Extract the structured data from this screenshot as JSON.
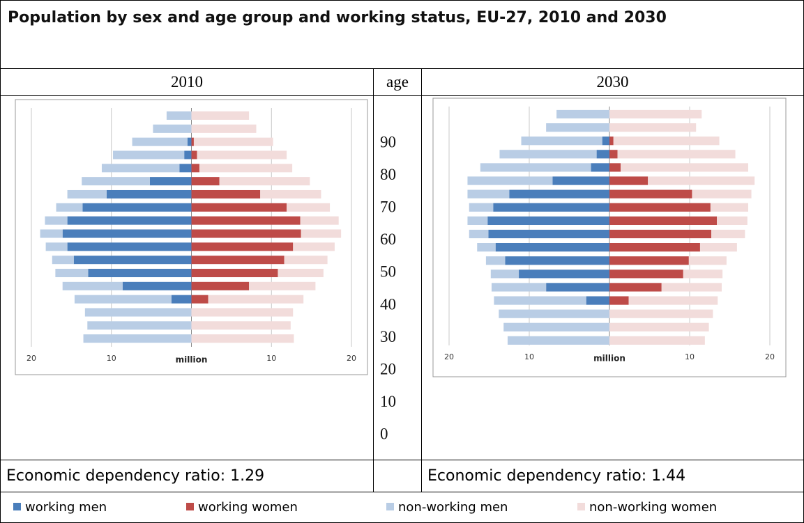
{
  "title": "Population by sex and age group and working status, EU-27, 2010 and 2030",
  "columns": [
    "2010",
    "age",
    "2030"
  ],
  "age_labels": [
    "90",
    "80",
    "70",
    "60",
    "50",
    "40",
    "30",
    "20",
    "10",
    "0"
  ],
  "ratios": [
    "Economic dependency ratio: 1.29",
    "Economic dependency ratio: 1.44"
  ],
  "chart_data": [
    {
      "type": "pyramid",
      "x_label": "million",
      "xlim": [
        -22,
        22
      ],
      "xticks": [
        {
          "value": -20,
          "label": "20"
        },
        {
          "value": -10,
          "label": "10"
        },
        {
          "value": 10,
          "label": "10"
        },
        {
          "value": 20,
          "label": "20"
        }
      ],
      "grid": true,
      "series": [
        {
          "name": "working men",
          "color": "#4a7ebb",
          "side": "left",
          "values": [
            0,
            0,
            0.5,
            0.9,
            1.5,
            5.2,
            10.6,
            13.6,
            15.5,
            16.1,
            15.5,
            14.7,
            12.9,
            8.6,
            2.5,
            0,
            0,
            0
          ]
        },
        {
          "name": "working women",
          "color": "#be4b48",
          "side": "right",
          "values": [
            0,
            0,
            0.3,
            0.7,
            1.0,
            3.5,
            8.6,
            11.9,
            13.6,
            13.7,
            12.7,
            11.6,
            10.8,
            7.2,
            2.1,
            0,
            0,
            0
          ]
        },
        {
          "name": "non-working men",
          "color": "#b9cde5",
          "side": "left",
          "values": [
            3.1,
            4.8,
            6.9,
            8.9,
            9.7,
            8.5,
            4.9,
            3.3,
            2.8,
            2.8,
            2.7,
            2.7,
            4.1,
            7.5,
            12.1,
            13.3,
            13.0,
            13.5
          ]
        },
        {
          "name": "non-working women",
          "color": "#f2dcdb",
          "side": "right",
          "values": [
            7.2,
            8.1,
            9.9,
            11.2,
            11.6,
            11.3,
            7.6,
            5.4,
            4.8,
            5.0,
            5.2,
            5.4,
            5.7,
            8.3,
            11.9,
            12.7,
            12.4,
            12.8
          ]
        }
      ]
    },
    {
      "type": "pyramid",
      "x_label": "million",
      "xlim": [
        -22,
        22
      ],
      "xticks": [
        {
          "value": -20,
          "label": "20"
        },
        {
          "value": -10,
          "label": "10"
        },
        {
          "value": 10,
          "label": "10"
        },
        {
          "value": 20,
          "label": "20"
        }
      ],
      "grid": true,
      "series": [
        {
          "name": "working men",
          "color": "#4a7ebb",
          "side": "left",
          "values": [
            0,
            0,
            0.9,
            1.6,
            2.3,
            7.1,
            12.5,
            14.5,
            15.2,
            15.1,
            14.2,
            13.0,
            11.3,
            7.9,
            2.9,
            0,
            0,
            0
          ]
        },
        {
          "name": "working women",
          "color": "#be4b48",
          "side": "right",
          "values": [
            0,
            0,
            0.5,
            1.0,
            1.4,
            4.8,
            10.3,
            12.6,
            13.4,
            12.7,
            11.3,
            9.9,
            9.2,
            6.5,
            2.4,
            0,
            0,
            0
          ]
        },
        {
          "name": "non-working men",
          "color": "#b9cde5",
          "side": "left",
          "values": [
            6.6,
            7.9,
            10.1,
            12.1,
            13.8,
            10.6,
            5.2,
            3.0,
            2.5,
            2.4,
            2.3,
            2.4,
            3.5,
            6.8,
            11.5,
            13.8,
            13.2,
            12.7
          ]
        },
        {
          "name": "non-working women",
          "color": "#f2dcdb",
          "side": "right",
          "values": [
            11.5,
            10.8,
            13.2,
            14.7,
            15.9,
            13.3,
            7.4,
            4.7,
            3.8,
            4.2,
            4.6,
            4.7,
            4.9,
            7.5,
            11.1,
            12.9,
            12.4,
            11.9
          ]
        }
      ]
    }
  ]
}
